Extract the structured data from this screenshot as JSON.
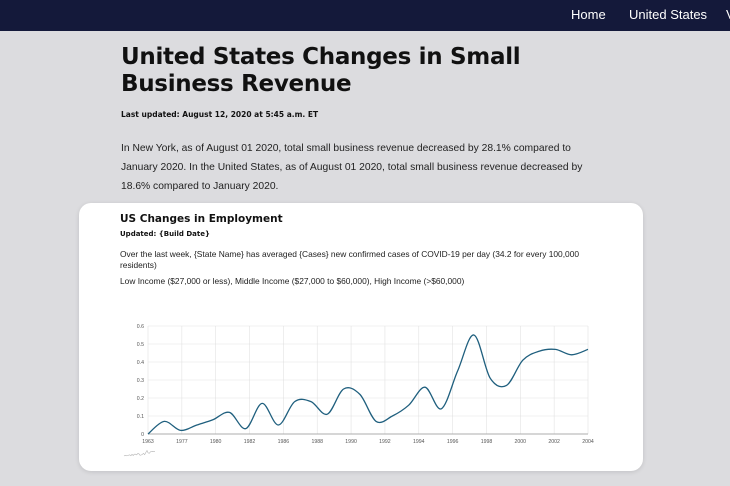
{
  "nav": {
    "items": [
      {
        "label": "Home"
      },
      {
        "label": "United States"
      },
      {
        "label": "V"
      }
    ]
  },
  "page": {
    "title": "United States Changes in Small Business Revenue",
    "last_updated": "Last updated: August 12, 2020 at 5:45 a.m. ET",
    "summary": "In New York, as of August 01 2020, total small business revenue decreased by 28.1% compared to January 2020. In the United States, as of August 01 2020, total small business revenue decreased by 18.6% compared to January 2020."
  },
  "card": {
    "title": "US Changes in Employment",
    "updated": "Updated: {Build Date}",
    "description": "Over the last week, {State Name} has averaged {Cases} new confirmed cases of COVID-19 per day (34.2 for every 100,000 residents)",
    "legend_text": "Low Income ($27,000 or less), Middle Income ($27,000 to $60,000), High Income (>$60,000)"
  },
  "colors": {
    "nav_bg": "#14193a",
    "page_bg": "#dcdcdf",
    "line": "#1f5f7e",
    "grid": "#e2e2e2"
  },
  "chart_data": {
    "type": "line",
    "x_tick_labels": [
      "1963",
      "1977",
      "1980",
      "1982",
      "1986",
      "1988",
      "1990",
      "1992",
      "1994",
      "1996",
      "1998",
      "2000",
      "2002",
      "2004"
    ],
    "ylim": [
      0,
      0.6
    ],
    "y_ticks": [
      0,
      0.1,
      0.2,
      0.3,
      0.4,
      0.5,
      0.6
    ],
    "grid": true,
    "series": [
      {
        "values": [
          0,
          0.07,
          0.02,
          0.05,
          0.08,
          0.12,
          0.03,
          0.17,
          0.05,
          0.18,
          0.18,
          0.11,
          0.25,
          0.22,
          0.07,
          0.1,
          0.16,
          0.26,
          0.14,
          0.35,
          0.55,
          0.31,
          0.27,
          0.41,
          0.46,
          0.47,
          0.44,
          0.47
        ]
      }
    ]
  }
}
